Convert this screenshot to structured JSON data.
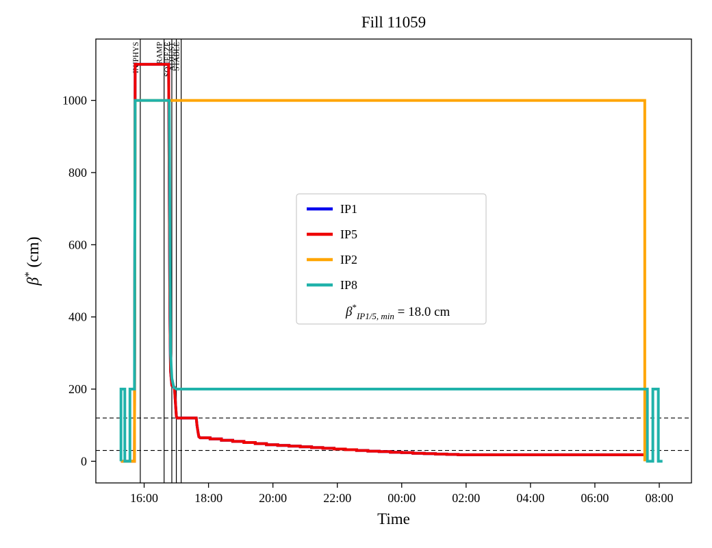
{
  "figure": {
    "title": "Fill 11059",
    "background": "#ffffff"
  },
  "chart_data": {
    "type": "line",
    "title": "Fill 11059",
    "xlabel": "Time",
    "ylabel_beta": "β",
    "ylabel_sup": "*",
    "ylabel_unit": " (cm)",
    "xlim": [
      14.5,
      33.0
    ],
    "ylim": [
      -60,
      1170
    ],
    "grid": false,
    "x_ticks": [
      [
        16,
        "16:00"
      ],
      [
        18,
        "18:00"
      ],
      [
        20,
        "20:00"
      ],
      [
        22,
        "22:00"
      ],
      [
        24,
        "00:00"
      ],
      [
        26,
        "02:00"
      ],
      [
        28,
        "04:00"
      ],
      [
        30,
        "06:00"
      ],
      [
        32,
        "08:00"
      ]
    ],
    "y_ticks": [
      [
        0,
        "0"
      ],
      [
        200,
        "200"
      ],
      [
        400,
        "400"
      ],
      [
        600,
        "600"
      ],
      [
        800,
        "800"
      ],
      [
        1000,
        "1000"
      ]
    ],
    "hlines": {
      "color": "#000000",
      "style": "dashed",
      "values": [
        120,
        30
      ]
    },
    "beam_mode_vlines": [
      {
        "x": 15.88,
        "label": "INJPHYS"
      },
      {
        "x": 16.62,
        "label": "RAMP"
      },
      {
        "x": 16.86,
        "label": "SQUEEZE"
      },
      {
        "x": 17.0,
        "label": "ADJUST"
      },
      {
        "x": 17.15,
        "label": "STABLE"
      }
    ],
    "series": [
      {
        "name": "IP1",
        "color": "#0000ee",
        "points": [
          [
            15.28,
            0
          ],
          [
            15.7,
            0
          ],
          [
            15.72,
            1100
          ],
          [
            16.76,
            1100
          ],
          [
            16.8,
            400
          ],
          [
            16.82,
            250
          ],
          [
            16.86,
            210
          ],
          [
            16.94,
            205
          ],
          [
            17.0,
            125
          ],
          [
            17.02,
            120
          ],
          [
            17.62,
            120
          ],
          [
            17.64,
            100
          ],
          [
            17.68,
            78
          ],
          [
            17.7,
            68
          ],
          [
            17.74,
            65
          ],
          [
            18.05,
            65
          ],
          [
            18.05,
            62
          ],
          [
            18.4,
            62
          ],
          [
            18.4,
            58
          ],
          [
            18.75,
            58
          ],
          [
            18.75,
            55
          ],
          [
            19.1,
            55
          ],
          [
            19.1,
            52
          ],
          [
            19.45,
            52
          ],
          [
            19.45,
            49
          ],
          [
            19.8,
            49
          ],
          [
            19.8,
            46
          ],
          [
            20.15,
            46
          ],
          [
            20.15,
            44
          ],
          [
            20.5,
            44
          ],
          [
            20.5,
            42
          ],
          [
            20.85,
            42
          ],
          [
            20.85,
            40
          ],
          [
            21.2,
            40
          ],
          [
            21.2,
            38
          ],
          [
            21.55,
            38
          ],
          [
            21.55,
            36
          ],
          [
            21.9,
            36
          ],
          [
            21.9,
            34
          ],
          [
            22.25,
            34
          ],
          [
            22.25,
            32
          ],
          [
            22.6,
            32
          ],
          [
            22.6,
            30
          ],
          [
            22.95,
            30
          ],
          [
            22.95,
            28
          ],
          [
            23.3,
            28
          ],
          [
            23.3,
            27
          ],
          [
            23.65,
            27
          ],
          [
            23.65,
            25
          ],
          [
            24.0,
            25
          ],
          [
            24.0,
            24
          ],
          [
            24.35,
            24
          ],
          [
            24.35,
            22
          ],
          [
            24.7,
            22
          ],
          [
            24.7,
            21
          ],
          [
            25.05,
            21
          ],
          [
            25.05,
            20
          ],
          [
            25.4,
            20
          ],
          [
            25.4,
            19
          ],
          [
            25.75,
            19
          ],
          [
            25.75,
            18
          ],
          [
            31.55,
            18
          ]
        ]
      },
      {
        "name": "IP5",
        "color": "#ee0000",
        "points": [
          [
            15.28,
            0
          ],
          [
            15.7,
            0
          ],
          [
            15.72,
            1100
          ],
          [
            16.76,
            1100
          ],
          [
            16.8,
            400
          ],
          [
            16.82,
            250
          ],
          [
            16.86,
            210
          ],
          [
            16.94,
            205
          ],
          [
            17.0,
            125
          ],
          [
            17.02,
            120
          ],
          [
            17.62,
            120
          ],
          [
            17.64,
            100
          ],
          [
            17.68,
            78
          ],
          [
            17.7,
            68
          ],
          [
            17.74,
            65
          ],
          [
            18.05,
            65
          ],
          [
            18.05,
            62
          ],
          [
            18.4,
            62
          ],
          [
            18.4,
            58
          ],
          [
            18.75,
            58
          ],
          [
            18.75,
            55
          ],
          [
            19.1,
            55
          ],
          [
            19.1,
            52
          ],
          [
            19.45,
            52
          ],
          [
            19.45,
            49
          ],
          [
            19.8,
            49
          ],
          [
            19.8,
            46
          ],
          [
            20.15,
            46
          ],
          [
            20.15,
            44
          ],
          [
            20.5,
            44
          ],
          [
            20.5,
            42
          ],
          [
            20.85,
            42
          ],
          [
            20.85,
            40
          ],
          [
            21.2,
            40
          ],
          [
            21.2,
            38
          ],
          [
            21.55,
            38
          ],
          [
            21.55,
            36
          ],
          [
            21.9,
            36
          ],
          [
            21.9,
            34
          ],
          [
            22.25,
            34
          ],
          [
            22.25,
            32
          ],
          [
            22.6,
            32
          ],
          [
            22.6,
            30
          ],
          [
            22.95,
            30
          ],
          [
            22.95,
            28
          ],
          [
            23.3,
            28
          ],
          [
            23.3,
            27
          ],
          [
            23.65,
            27
          ],
          [
            23.65,
            25
          ],
          [
            24.0,
            25
          ],
          [
            24.0,
            24
          ],
          [
            24.35,
            24
          ],
          [
            24.35,
            22
          ],
          [
            24.7,
            22
          ],
          [
            24.7,
            21
          ],
          [
            25.05,
            21
          ],
          [
            25.05,
            20
          ],
          [
            25.4,
            20
          ],
          [
            25.4,
            19
          ],
          [
            25.75,
            19
          ],
          [
            25.75,
            18
          ],
          [
            31.55,
            18
          ]
        ]
      },
      {
        "name": "IP2",
        "color": "#ffa500",
        "points": [
          [
            15.28,
            0
          ],
          [
            15.7,
            0
          ],
          [
            15.72,
            1000
          ],
          [
            31.55,
            1000
          ],
          [
            31.55,
            0
          ]
        ]
      },
      {
        "name": "IP8",
        "color": "#20b2aa",
        "points": [
          [
            15.28,
            0
          ],
          [
            15.28,
            200
          ],
          [
            15.4,
            200
          ],
          [
            15.4,
            0
          ],
          [
            15.56,
            0
          ],
          [
            15.56,
            200
          ],
          [
            15.7,
            200
          ],
          [
            15.72,
            1000
          ],
          [
            16.78,
            1000
          ],
          [
            16.82,
            300
          ],
          [
            16.86,
            230
          ],
          [
            16.92,
            205
          ],
          [
            17.0,
            200
          ],
          [
            31.63,
            200
          ],
          [
            31.63,
            0
          ],
          [
            31.8,
            0
          ],
          [
            31.8,
            200
          ],
          [
            31.97,
            200
          ],
          [
            31.97,
            0
          ],
          [
            32.1,
            0
          ]
        ]
      }
    ],
    "legend": {
      "position": "center-left-inside",
      "items": [
        {
          "label": "IP1",
          "color": "#0000ee"
        },
        {
          "label": "IP5",
          "color": "#ee0000"
        },
        {
          "label": "IP2",
          "color": "#ffa500"
        },
        {
          "label": "IP8",
          "color": "#20b2aa"
        }
      ],
      "annotation": {
        "beta": "β",
        "sup": "*",
        "sub": "IP1/5, min",
        "rhs": " = 18.0 cm",
        "value": "18.0",
        "unit": "cm"
      }
    }
  }
}
